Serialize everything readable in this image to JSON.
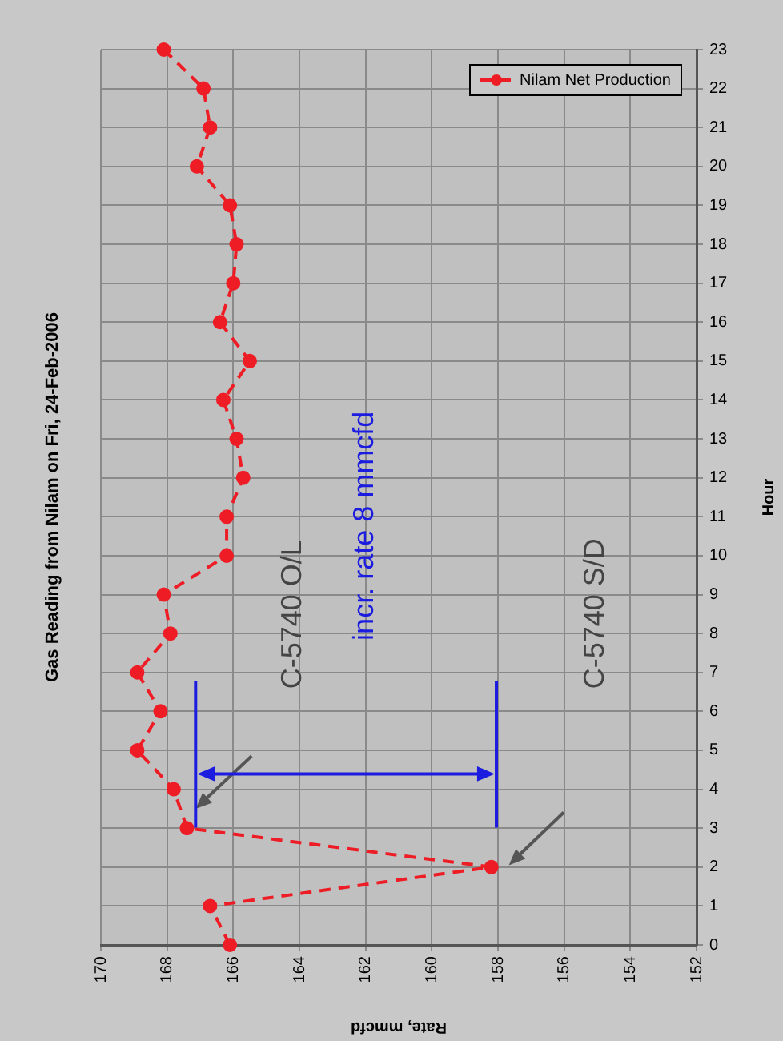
{
  "chart_data": {
    "type": "line",
    "orientation": "horizontal",
    "title": "Gas Reading from Nilam on Fri, 24-Feb-2006",
    "xlabel": "Rate, mmcfd",
    "ylabel": "Hour",
    "categories": [
      "23",
      "22",
      "21",
      "20",
      "19",
      "18",
      "17",
      "16",
      "15",
      "14",
      "13",
      "12",
      "11",
      "10",
      "9",
      "8",
      "7",
      "6",
      "5",
      "4",
      "3",
      "2",
      "1",
      "0"
    ],
    "series": [
      {
        "name": "Nilam Net Production",
        "color": "#ee1c25",
        "values": [
          168.1,
          166.9,
          166.7,
          167.1,
          166.1,
          165.9,
          166.0,
          166.4,
          165.5,
          166.3,
          165.9,
          165.7,
          166.2,
          166.2,
          168.1,
          167.9,
          168.9,
          168.2,
          168.9,
          167.8,
          167.4,
          158.2,
          166.7,
          166.1
        ]
      }
    ],
    "xlim": [
      170,
      152
    ],
    "xticks": [
      170,
      168,
      166,
      164,
      162,
      160,
      158,
      156,
      154,
      152
    ],
    "grid": true,
    "legend": "top right",
    "marker": "circle",
    "line_style": "dashed",
    "annotations": [
      "C-5740 O/L",
      "C-5740 S/D",
      "incr. rate 8 mmcfd"
    ]
  }
}
